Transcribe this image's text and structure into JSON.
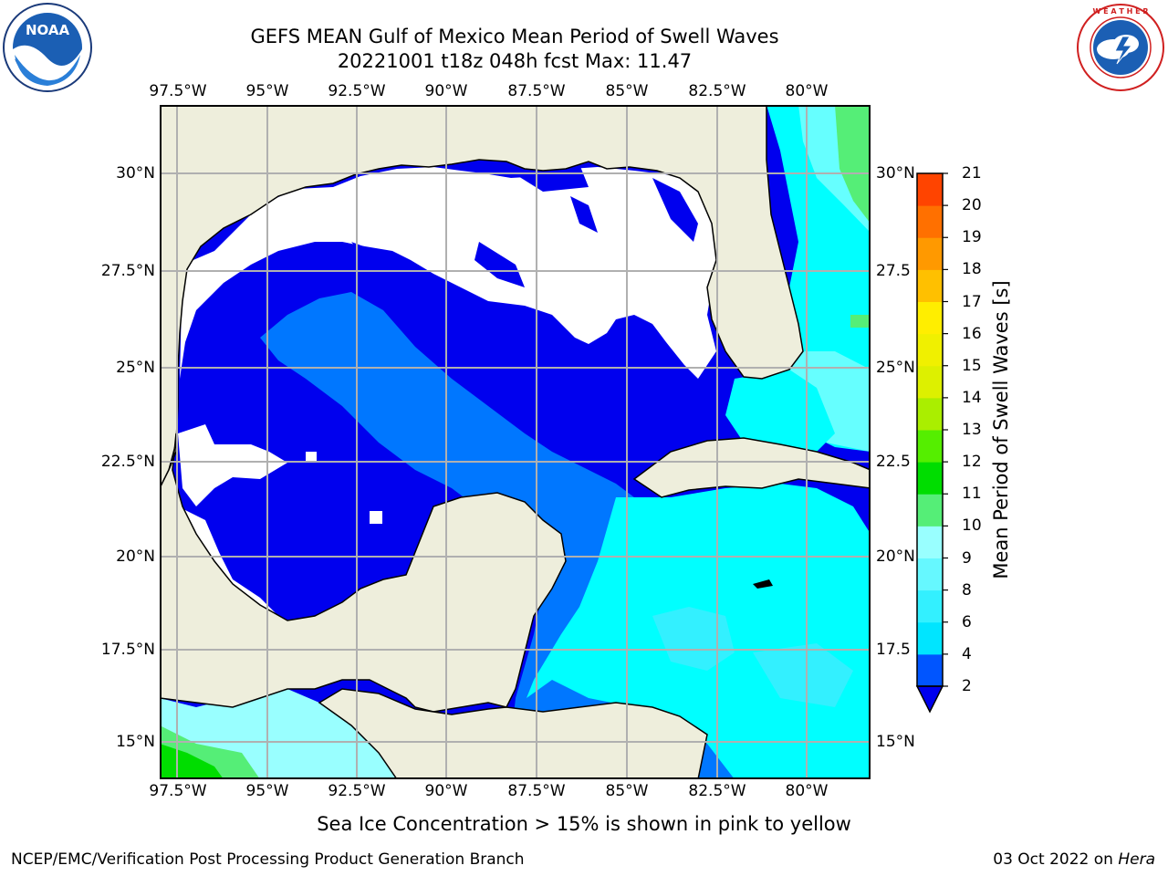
{
  "title_line1": "GEFS MEAN Gulf of Mexico Mean Period of Swell Waves",
  "title_line2": "20221001 t18z 048h fcst   Max: 11.47",
  "x_ticks": [
    "97.5°W",
    "95°W",
    "92.5°W",
    "90°W",
    "87.5°W",
    "85°W",
    "82.5°W",
    "80°W"
  ],
  "y_ticks_left": [
    "30°N",
    "27.5°N",
    "25°N",
    "22.5°N",
    "20°N",
    "17.5°N",
    "15°N"
  ],
  "y_ticks_right": [
    "30°N",
    "27.5",
    "25°N",
    "22.5",
    "20°N",
    "17.5",
    "15°N"
  ],
  "colorbar": {
    "label": "Mean Period of Swell Waves [s]",
    "ticks": [
      "2",
      "4",
      "6",
      "8",
      "9",
      "10",
      "11",
      "12",
      "13",
      "14",
      "15",
      "16",
      "17",
      "18",
      "19",
      "20",
      "21"
    ],
    "colors": [
      "#0055ff",
      "#00e5ff",
      "#33f0ff",
      "#66f8ff",
      "#99ffff",
      "#55ee77",
      "#00dd00",
      "#55ee00",
      "#aaee00",
      "#ddf000",
      "#f0f000",
      "#ffee00",
      "#ffc000",
      "#ff9900",
      "#ff7000",
      "#ff4400",
      "#ff0000"
    ],
    "extend_color": "#0000ee"
  },
  "ice_note": "Sea Ice Concentration > 15% is shown in pink to yellow",
  "footer_left": "NCEP/EMC/Verification Post Processing Product Generation Branch",
  "footer_date": "03 Oct 2022 on",
  "footer_machine": "Hera",
  "logos": {
    "left": "noaa-logo",
    "right": "nws-logo"
  },
  "colors": {
    "land": "#eeeedc",
    "deep_blue": "#0000ee",
    "mid_blue": "#0077ff",
    "cyan": "#00ffff",
    "light_cyan": "#66ffff",
    "green": "#55ee77",
    "grid": "#b0b0b0"
  }
}
